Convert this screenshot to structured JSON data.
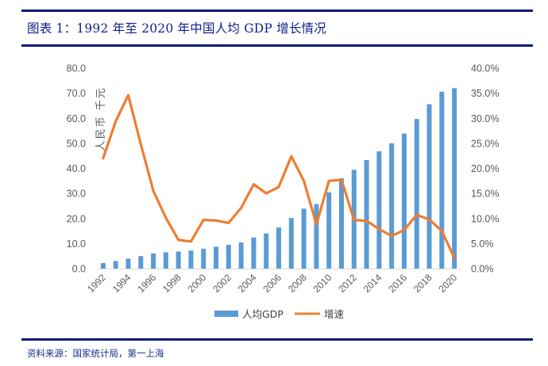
{
  "figure": {
    "title": "图表 1：1992 年至 2020 年中国人均 GDP 增长情况",
    "source": "资料来源：国家统计局，第一上海"
  },
  "chart_data": {
    "type": "bar+line",
    "title": "1992 年至 2020 年中国人均 GDP 增长情况",
    "categories": [
      "1992",
      "1993",
      "1994",
      "1995",
      "1996",
      "1997",
      "1998",
      "1999",
      "2000",
      "2001",
      "2002",
      "2003",
      "2004",
      "2005",
      "2006",
      "2007",
      "2008",
      "2009",
      "2010",
      "2011",
      "2012",
      "2013",
      "2014",
      "2015",
      "2016",
      "2017",
      "2018",
      "2019",
      "2020"
    ],
    "x_tick_labels": [
      "1992",
      "1994",
      "1996",
      "1998",
      "2000",
      "2002",
      "2004",
      "2006",
      "2008",
      "2010",
      "2012",
      "2014",
      "2016",
      "2018",
      "2020"
    ],
    "ylabel_left": "人民币 千元",
    "ylabel_right": "",
    "y_left": {
      "range": [
        0,
        80
      ],
      "ticks": [
        "0.0",
        "10.0",
        "20.0",
        "30.0",
        "40.0",
        "50.0",
        "60.0",
        "70.0",
        "80.0"
      ]
    },
    "y_right": {
      "range": [
        0,
        40
      ],
      "ticks": [
        "0.0%",
        "5.0%",
        "10.0%",
        "15.0%",
        "20.0%",
        "25.0%",
        "30.0%",
        "35.0%",
        "40.0%"
      ]
    },
    "series": [
      {
        "name": "人均GDP",
        "type": "bar",
        "axis": "left",
        "color": "#5b9bd5",
        "values": [
          2.2,
          3.0,
          4.0,
          5.0,
          6.0,
          6.5,
          6.8,
          7.2,
          7.9,
          8.7,
          9.5,
          10.4,
          12.4,
          14.0,
          16.4,
          20.2,
          23.9,
          25.7,
          30.4,
          36.0,
          39.4,
          43.3,
          46.8,
          50.0,
          53.9,
          59.7,
          65.6,
          70.6,
          72.0
        ]
      },
      {
        "name": "增速",
        "type": "line",
        "axis": "right",
        "color": "#ed7d31",
        "values": [
          22.0,
          29.4,
          34.6,
          24.8,
          15.5,
          10.1,
          5.7,
          5.4,
          9.7,
          9.6,
          9.1,
          12.1,
          16.8,
          15.0,
          16.3,
          22.4,
          17.5,
          8.8,
          17.5,
          17.7,
          9.7,
          9.5,
          7.9,
          6.5,
          7.7,
          10.7,
          9.8,
          7.5,
          2.1
        ]
      }
    ],
    "legend": {
      "position": "bottom",
      "items": [
        "人均GDP",
        "增速"
      ]
    },
    "grid": false
  }
}
